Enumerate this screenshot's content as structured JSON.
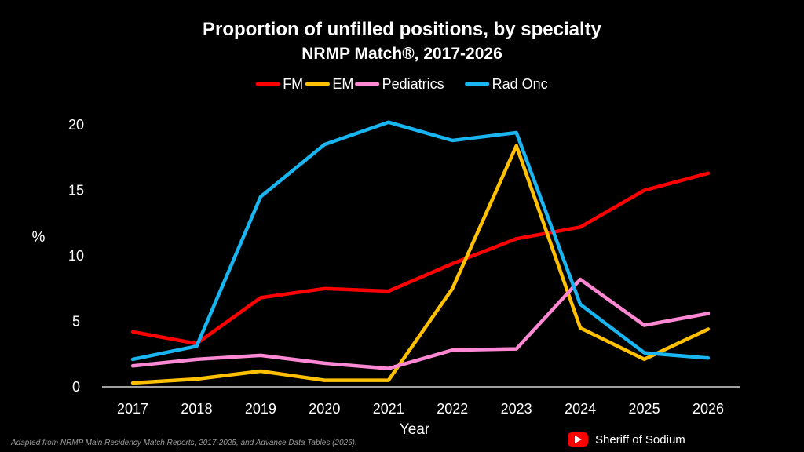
{
  "chart_data": {
    "type": "line",
    "title": "Proportion of unfilled positions, by specialty",
    "subtitle": "NRMP Match®, 2017-2026",
    "xlabel": "Year",
    "ylabel": "%",
    "categories": [
      "2017",
      "2018",
      "2019",
      "2020",
      "2021",
      "2022",
      "2023",
      "2024",
      "2025",
      "2026"
    ],
    "ylim": [
      0,
      20
    ],
    "yticks": [
      0,
      5,
      10,
      15,
      20
    ],
    "grid": false,
    "legend_position": "top-center",
    "series": [
      {
        "name": "FM",
        "color": "#ff0000",
        "values": [
          4.2,
          3.3,
          6.8,
          7.5,
          7.3,
          9.4,
          11.3,
          12.2,
          15.0,
          16.3
        ]
      },
      {
        "name": "EM",
        "color": "#ffc000",
        "values": [
          0.3,
          0.6,
          1.2,
          0.5,
          0.5,
          7.5,
          18.4,
          4.5,
          2.1,
          4.4
        ]
      },
      {
        "name": "Pediatrics",
        "color": "#ff88d4",
        "values": [
          1.6,
          2.1,
          2.4,
          1.8,
          1.4,
          2.8,
          2.9,
          8.2,
          4.7,
          5.6
        ]
      },
      {
        "name": "Rad Onc",
        "color": "#19b5f0",
        "values": [
          2.1,
          3.1,
          14.5,
          18.5,
          20.2,
          18.8,
          19.4,
          6.3,
          2.6,
          2.2
        ]
      }
    ],
    "footnote": "Adapted from NRMP Main Residency Match Reports, 2017-2025, and Advance Data Tables (2026).",
    "credit": "Sheriff of Sodium",
    "credit_icon": "youtube-icon",
    "credit_icon_color": "#ff0000"
  }
}
